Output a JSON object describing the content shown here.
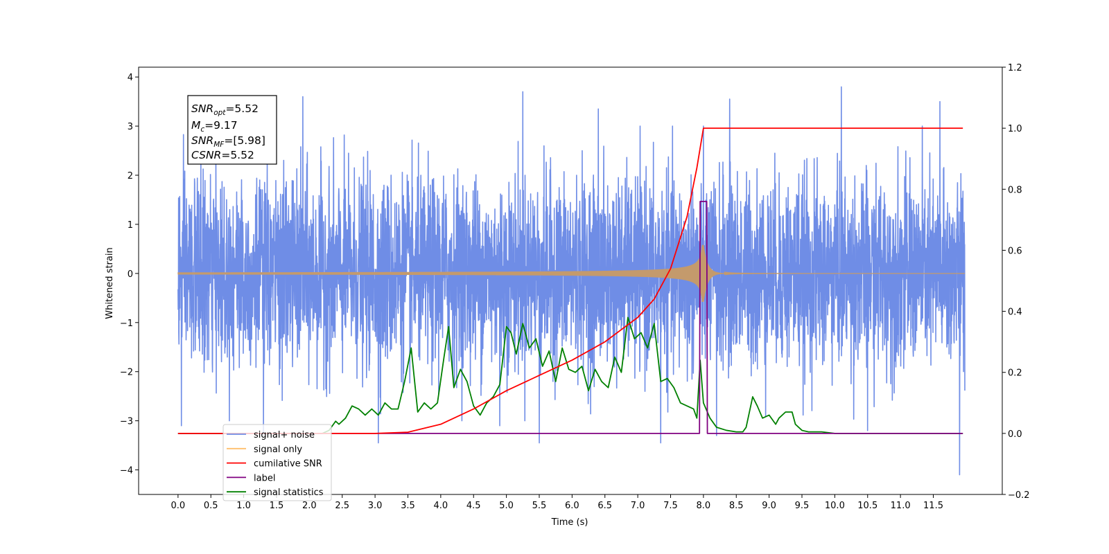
{
  "chart_data": {
    "type": "line",
    "xlabel": "Time (s)",
    "ylabel": "Whitened strain",
    "xlim": [
      -0.6,
      12.55
    ],
    "ylim": [
      -4.5,
      4.2
    ],
    "y2lim": [
      -0.2,
      1.2
    ],
    "x_ticks": [
      "0.0",
      "0.5",
      "1.0",
      "1.5",
      "2.0",
      "2.5",
      "3.0",
      "3.5",
      "4.0",
      "4.5",
      "5.0",
      "5.5",
      "6.0",
      "6.5",
      "7.0",
      "7.5",
      "8.0",
      "8.5",
      "9.0",
      "9.5",
      "10.0",
      "10.5",
      "11.0",
      "11.5"
    ],
    "y_ticks": [
      "4",
      "3",
      "2",
      "1",
      "0",
      "−1",
      "−2",
      "−3",
      "−4"
    ],
    "y2_ticks": [
      "1.2",
      "1.0",
      "0.8",
      "0.6",
      "0.4",
      "0.2",
      "0.0",
      "−0.2"
    ],
    "grid": false,
    "legend_position": "lower-left",
    "stats_box": {
      "snr_opt": {
        "sym": "SNR",
        "sub": "opt",
        "value": "=5.52"
      },
      "mc": {
        "sym": "M",
        "sub": "c",
        "value": "=9.17"
      },
      "snr_mf": {
        "sym": "SNR",
        "sub": "MF",
        "value": "=[5.98]"
      },
      "csnr": {
        "sym": "CSNR",
        "sub": "",
        "value": "=5.52"
      }
    },
    "series": [
      {
        "name": "signal+ noise",
        "axis": "left",
        "color": "#6f8de6",
        "description_values": "white noise, std ~1.0, t from 0 to 12 s, spikes up to 3.8 and down to -4.1",
        "spikes": [
          [
            1.9,
            3.6
          ],
          [
            5.25,
            3.7
          ],
          [
            10.1,
            3.8
          ],
          [
            8.4,
            3.55
          ],
          [
            11.6,
            3.5
          ],
          [
            6.4,
            3.35
          ],
          [
            8.2,
            -3.3
          ],
          [
            10.5,
            -3.2
          ],
          [
            5.5,
            -3.45
          ],
          [
            3.05,
            -3.45
          ],
          [
            7.35,
            -3.45
          ],
          [
            0.05,
            -3.1
          ],
          [
            11.9,
            -4.1
          ],
          [
            1.3,
            -3.3
          ],
          [
            4.9,
            -3.1
          ]
        ]
      },
      {
        "name": "signal only",
        "axis": "left",
        "color": "#c49a6c",
        "chirp_start": 3.5,
        "merger": 8.0,
        "peak_amplitude": 0.58,
        "ringdown_end": 8.6
      },
      {
        "name": "cumilative SNR",
        "axis": "right",
        "color": "#ff0000",
        "x": [
          0.0,
          2.0,
          3.0,
          3.5,
          4.0,
          4.5,
          5.0,
          5.5,
          6.0,
          6.5,
          7.0,
          7.25,
          7.5,
          7.75,
          7.9,
          8.0,
          8.01,
          11.95
        ],
        "values": [
          0.0,
          0.0,
          0.0,
          0.004,
          0.03,
          0.08,
          0.14,
          0.19,
          0.24,
          0.3,
          0.38,
          0.44,
          0.54,
          0.71,
          0.87,
          1.0,
          1.0,
          1.0
        ]
      },
      {
        "name": "label",
        "axis": "right",
        "color": "#800080",
        "x": [
          0.0,
          7.94,
          7.95,
          8.05,
          8.06,
          11.95
        ],
        "values": [
          0.0,
          0.0,
          0.76,
          0.76,
          0.0,
          0.0
        ]
      },
      {
        "name": "signal statistics",
        "axis": "right",
        "color": "#008000",
        "x": [
          0.0,
          2.0,
          2.2,
          2.3,
          2.4,
          2.45,
          2.55,
          2.65,
          2.75,
          2.85,
          2.95,
          3.05,
          3.15,
          3.25,
          3.35,
          3.45,
          3.55,
          3.65,
          3.75,
          3.85,
          3.95,
          4.05,
          4.12,
          4.2,
          4.3,
          4.4,
          4.5,
          4.6,
          4.7,
          4.8,
          4.9,
          5.0,
          5.07,
          5.15,
          5.25,
          5.35,
          5.45,
          5.55,
          5.65,
          5.75,
          5.85,
          5.95,
          6.05,
          6.15,
          6.25,
          6.35,
          6.45,
          6.55,
          6.65,
          6.75,
          6.85,
          6.95,
          7.05,
          7.15,
          7.25,
          7.35,
          7.45,
          7.55,
          7.65,
          7.75,
          7.85,
          7.9,
          7.95,
          8.0,
          8.1,
          8.2,
          8.35,
          8.5,
          8.6,
          8.65,
          8.75,
          8.82,
          8.9,
          9.0,
          9.1,
          9.15,
          9.25,
          9.35,
          9.4,
          9.5,
          9.6,
          9.7,
          9.8,
          10.0,
          11.95
        ],
        "values": [
          0.0,
          0.0,
          0.0,
          0.01,
          0.04,
          0.03,
          0.05,
          0.09,
          0.08,
          0.06,
          0.08,
          0.06,
          0.1,
          0.08,
          0.08,
          0.17,
          0.28,
          0.07,
          0.1,
          0.08,
          0.1,
          0.25,
          0.35,
          0.15,
          0.21,
          0.17,
          0.09,
          0.06,
          0.1,
          0.12,
          0.16,
          0.35,
          0.33,
          0.26,
          0.36,
          0.28,
          0.31,
          0.22,
          0.27,
          0.17,
          0.28,
          0.21,
          0.2,
          0.22,
          0.14,
          0.21,
          0.17,
          0.15,
          0.25,
          0.2,
          0.38,
          0.31,
          0.33,
          0.28,
          0.36,
          0.17,
          0.18,
          0.15,
          0.1,
          0.09,
          0.08,
          0.05,
          0.24,
          0.1,
          0.05,
          0.02,
          0.01,
          0.005,
          0.005,
          0.02,
          0.12,
          0.09,
          0.05,
          0.06,
          0.03,
          0.05,
          0.07,
          0.07,
          0.03,
          0.01,
          0.005,
          0.005,
          0.005,
          0.0,
          0.0
        ]
      }
    ]
  },
  "legend": {
    "entries": [
      {
        "label": "signal+ noise",
        "color": "#6f8de6"
      },
      {
        "label": "signal only",
        "color": "#ffbf6b"
      },
      {
        "label": "cumilative SNR",
        "color": "#ff0000"
      },
      {
        "label": "label",
        "color": "#800080"
      },
      {
        "label": "signal statistics",
        "color": "#008000"
      }
    ]
  }
}
